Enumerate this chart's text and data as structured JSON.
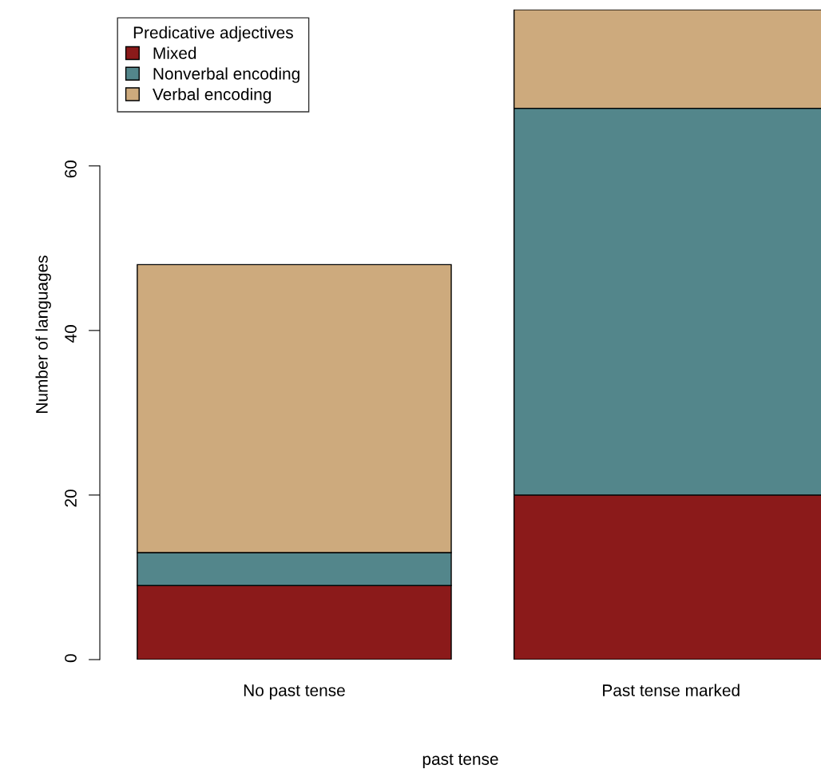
{
  "chart_data": {
    "type": "bar",
    "stacked": true,
    "xlabel": "past tense",
    "ylabel": "Number of languages",
    "legend_title": "Predicative adjectives",
    "legend": "top left",
    "grid": false,
    "categories": [
      "No past tense",
      "Past tense marked"
    ],
    "series": [
      {
        "name": "Mixed",
        "color": "#8b1a1a",
        "values": [
          9,
          20
        ]
      },
      {
        "name": "Nonverbal encoding",
        "color": "#53868b",
        "values": [
          4,
          47
        ]
      },
      {
        "name": "Verbal encoding",
        "color": "#cdaa7d",
        "values": [
          35,
          12
        ]
      }
    ],
    "ylim": [
      0,
      79
    ],
    "yticks": [
      0,
      20,
      40,
      60
    ]
  }
}
